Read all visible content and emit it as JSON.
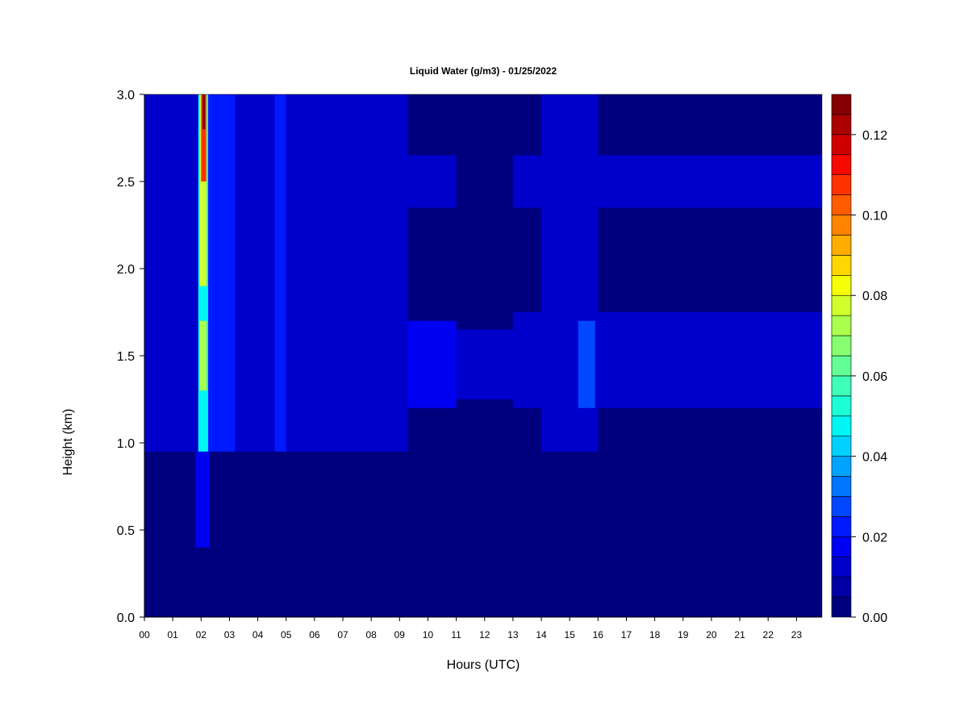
{
  "chart_data": {
    "type": "heatmap",
    "title": "Liquid Water (g/m3) - 01/25/2022",
    "xlabel": "Hours (UTC)",
    "ylabel": "Height (km)",
    "xlim": [
      0,
      23.9
    ],
    "ylim": [
      0,
      3.0
    ],
    "x_ticks": [
      "00",
      "01",
      "02",
      "03",
      "04",
      "05",
      "06",
      "07",
      "08",
      "09",
      "10",
      "11",
      "12",
      "13",
      "14",
      "15",
      "16",
      "17",
      "18",
      "19",
      "20",
      "21",
      "22",
      "23"
    ],
    "y_ticks": [
      "0.0",
      "0.5",
      "1.0",
      "1.5",
      "2.0",
      "2.5",
      "3.0"
    ],
    "colorbar": {
      "range": [
        0,
        0.13
      ],
      "tick_values": [
        0,
        0.02,
        0.04,
        0.06,
        0.08,
        0.1,
        0.12
      ],
      "tick_labels": [
        "0.00",
        "0.02",
        "0.04",
        "0.06",
        "0.08",
        "0.10",
        "0.12"
      ],
      "levels": [
        {
          "min": 0.0,
          "max": 0.005,
          "color": "#00007f"
        },
        {
          "min": 0.005,
          "max": 0.01,
          "color": "#0000a6"
        },
        {
          "min": 0.01,
          "max": 0.015,
          "color": "#0000cd"
        },
        {
          "min": 0.015,
          "max": 0.02,
          "color": "#0000f2"
        },
        {
          "min": 0.02,
          "max": 0.025,
          "color": "#0019ff"
        },
        {
          "min": 0.025,
          "max": 0.03,
          "color": "#0047ff"
        },
        {
          "min": 0.03,
          "max": 0.035,
          "color": "#0075ff"
        },
        {
          "min": 0.035,
          "max": 0.04,
          "color": "#00a3ff"
        },
        {
          "min": 0.04,
          "max": 0.045,
          "color": "#00d1ff"
        },
        {
          "min": 0.045,
          "max": 0.05,
          "color": "#00f5f5"
        },
        {
          "min": 0.05,
          "max": 0.055,
          "color": "#1cffd6"
        },
        {
          "min": 0.055,
          "max": 0.06,
          "color": "#40ffb8"
        },
        {
          "min": 0.06,
          "max": 0.065,
          "color": "#63ff94"
        },
        {
          "min": 0.065,
          "max": 0.07,
          "color": "#87ff70"
        },
        {
          "min": 0.07,
          "max": 0.075,
          "color": "#abff4d"
        },
        {
          "min": 0.075,
          "max": 0.08,
          "color": "#d1ff2b"
        },
        {
          "min": 0.08,
          "max": 0.085,
          "color": "#f5ff08"
        },
        {
          "min": 0.085,
          "max": 0.09,
          "color": "#ffd600"
        },
        {
          "min": 0.09,
          "max": 0.095,
          "color": "#ffad00"
        },
        {
          "min": 0.095,
          "max": 0.1,
          "color": "#ff8500"
        },
        {
          "min": 0.1,
          "max": 0.105,
          "color": "#ff5c00"
        },
        {
          "min": 0.105,
          "max": 0.11,
          "color": "#ff3300"
        },
        {
          "min": 0.11,
          "max": 0.115,
          "color": "#f50a00"
        },
        {
          "min": 0.115,
          "max": 0.12,
          "color": "#d10000"
        },
        {
          "min": 0.12,
          "max": 0.125,
          "color": "#ab0000"
        },
        {
          "min": 0.125,
          "max": 0.13,
          "color": "#850000"
        }
      ]
    },
    "background_value": 0.002,
    "regions": [
      {
        "x0": 0.0,
        "x1": 23.9,
        "y0": 1.25,
        "y1": 1.65,
        "value": 0.014
      },
      {
        "x0": 0.0,
        "x1": 3.8,
        "y0": 0.95,
        "y1": 3.0,
        "value": 0.012
      },
      {
        "x0": 3.8,
        "x1": 9.3,
        "y0": 0.95,
        "y1": 3.0,
        "value": 0.014
      },
      {
        "x0": 9.3,
        "x1": 11.0,
        "y0": 1.2,
        "y1": 1.7,
        "value": 0.016
      },
      {
        "x0": 9.3,
        "x1": 11.0,
        "y0": 2.35,
        "y1": 2.65,
        "value": 0.012
      },
      {
        "x0": 13.0,
        "x1": 23.9,
        "y0": 2.35,
        "y1": 2.65,
        "value": 0.012
      },
      {
        "x0": 13.0,
        "x1": 23.9,
        "y0": 1.2,
        "y1": 1.75,
        "value": 0.013
      },
      {
        "x0": 14.0,
        "x1": 16.0,
        "y0": 0.95,
        "y1": 3.0,
        "value": 0.012
      },
      {
        "x0": 15.3,
        "x1": 15.9,
        "y0": 1.2,
        "y1": 1.7,
        "value": 0.026
      },
      {
        "x0": 4.6,
        "x1": 5.0,
        "y0": 0.95,
        "y1": 3.0,
        "value": 0.02
      },
      {
        "x0": 2.2,
        "x1": 3.2,
        "y0": 0.95,
        "y1": 3.0,
        "value": 0.022
      },
      {
        "x0": 1.8,
        "x1": 2.3,
        "y0": 0.4,
        "y1": 0.95,
        "value": 0.018
      },
      {
        "x0": 1.9,
        "x1": 2.25,
        "y0": 0.95,
        "y1": 3.0,
        "value": 0.045
      },
      {
        "x0": 1.95,
        "x1": 2.2,
        "y0": 1.9,
        "y1": 3.0,
        "value": 0.075
      },
      {
        "x0": 2.0,
        "x1": 2.18,
        "y0": 2.5,
        "y1": 3.0,
        "value": 0.105
      },
      {
        "x0": 2.05,
        "x1": 2.15,
        "y0": 2.8,
        "y1": 3.0,
        "value": 0.125
      },
      {
        "x0": 1.95,
        "x1": 2.2,
        "y0": 1.3,
        "y1": 1.7,
        "value": 0.07
      }
    ]
  }
}
